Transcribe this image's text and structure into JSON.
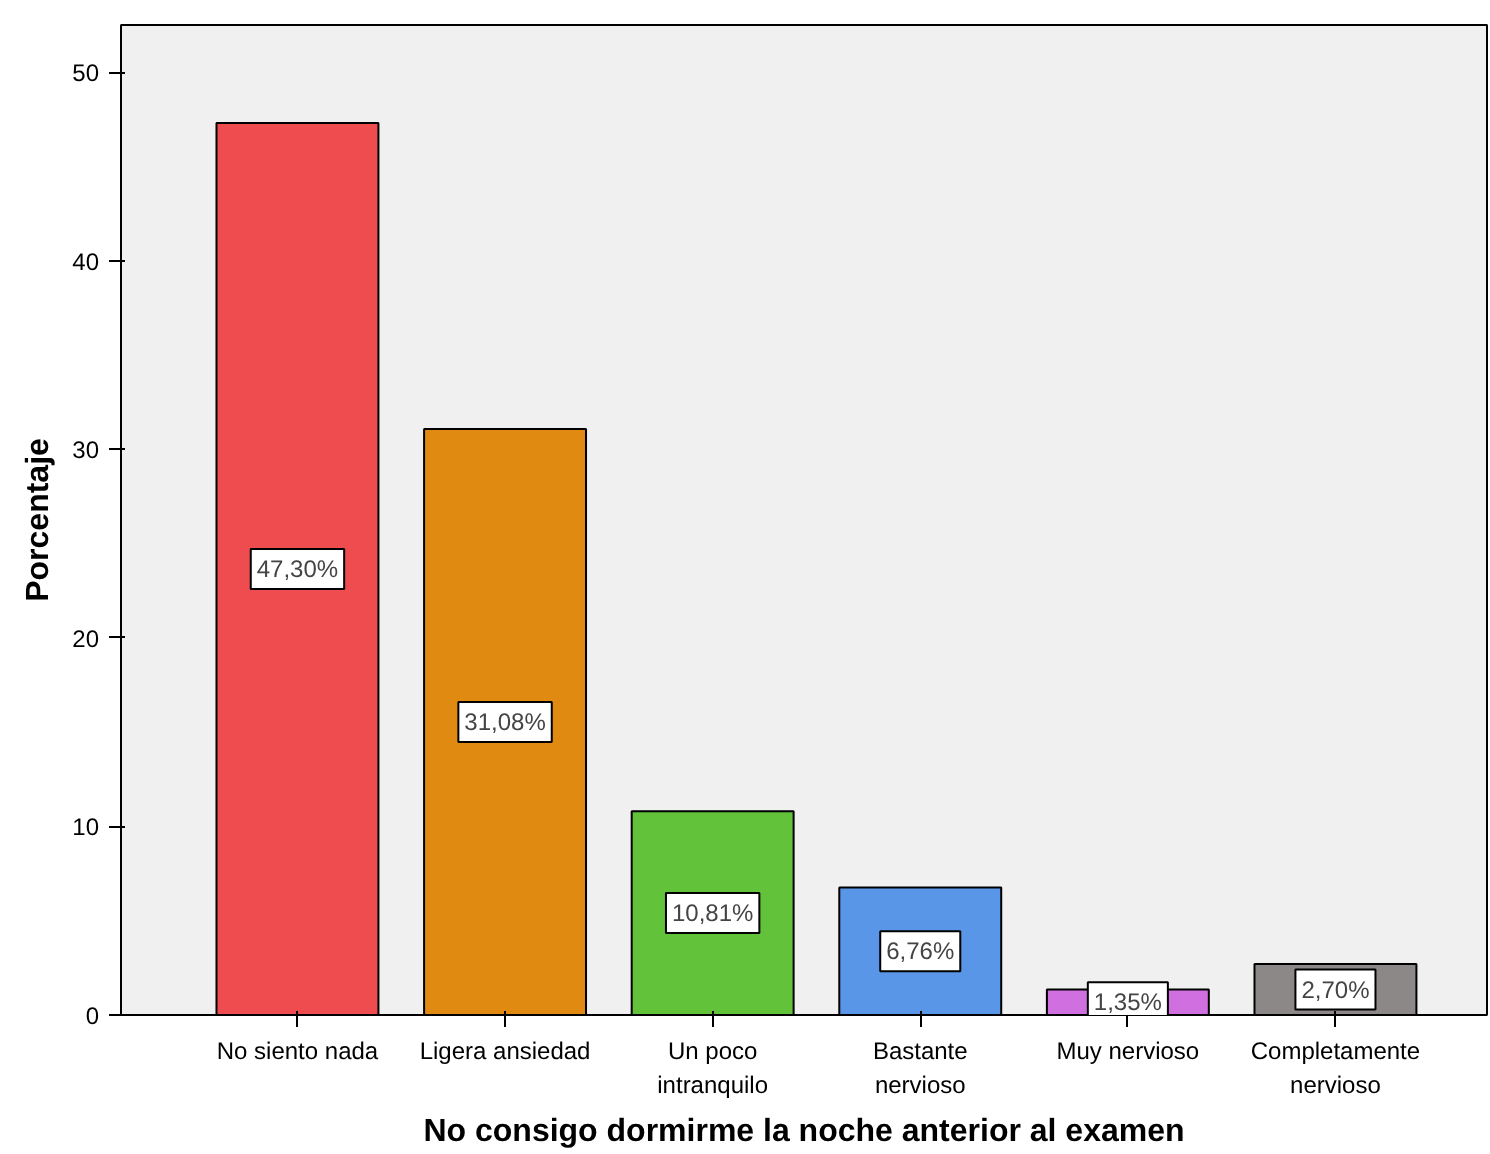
{
  "chart_data": {
    "type": "bar",
    "xlabel": "No consigo dormirme la noche anterior al examen",
    "ylabel": "Porcentaje",
    "categories": [
      "No siento nada",
      "Ligera ansiedad",
      "Un poco\nintranquilo",
      "Bastante\nnervioso",
      "Muy nervioso",
      "Completamente\nnervioso"
    ],
    "values": [
      47.3,
      31.08,
      10.81,
      6.76,
      1.35,
      2.7
    ],
    "value_labels": [
      "47,30%",
      "31,08%",
      "10,81%",
      "6,76%",
      "1,35%",
      "2,70%"
    ],
    "colors": [
      "#ee4c4e",
      "#e08a12",
      "#62c23a",
      "#5a96e8",
      "#d070e0",
      "#8c8888"
    ],
    "ylim": [
      0,
      52.5
    ],
    "yticks": [
      0,
      10,
      20,
      30,
      40,
      50
    ],
    "grid": false
  }
}
